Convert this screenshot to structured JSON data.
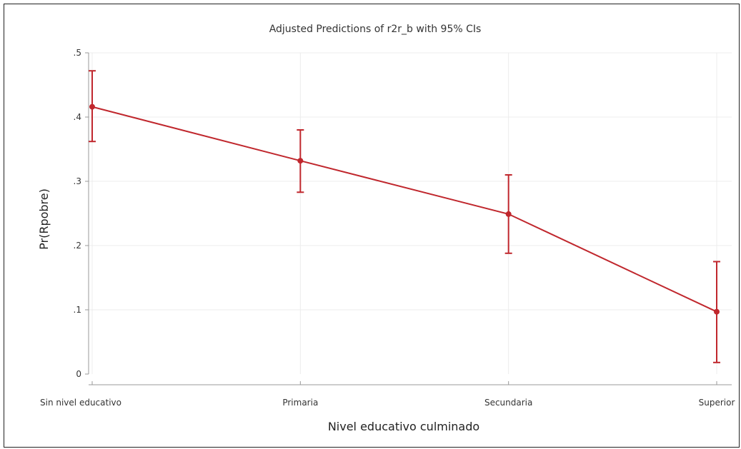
{
  "chart_data": {
    "type": "line",
    "title": "Adjusted Predictions of r2r_b with 95% CIs",
    "xlabel": "Nivel educativo culminado",
    "ylabel": "Pr(Rpobre)",
    "categories": [
      "Sin nivel educativo",
      "Primaria",
      "Secundaria",
      "Superior"
    ],
    "y_ticks": [
      {
        "value": 0,
        "label": "0"
      },
      {
        "value": 0.1,
        "label": ".1"
      },
      {
        "value": 0.2,
        "label": ".2"
      },
      {
        "value": 0.3,
        "label": ".3"
      },
      {
        "value": 0.4,
        "label": ".4"
      },
      {
        "value": 0.5,
        "label": ".5"
      }
    ],
    "ylim": [
      0,
      0.5
    ],
    "grid": true,
    "series": [
      {
        "values": [
          0.416,
          0.332,
          0.249,
          0.097
        ],
        "ci_lower": [
          0.362,
          0.283,
          0.188,
          0.018
        ],
        "ci_upper": [
          0.472,
          0.38,
          0.31,
          0.175
        ]
      }
    ],
    "colors": {
      "series": "#c0272d",
      "grid": "#ececec",
      "axis": "#999999"
    }
  }
}
